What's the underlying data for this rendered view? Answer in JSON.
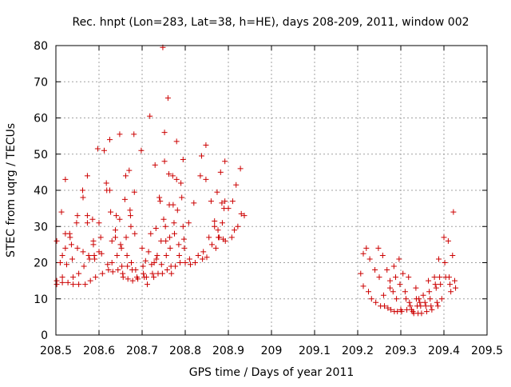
{
  "chart_data": {
    "type": "scatter",
    "title": "Rec. hnpt (Lon=283, Lat=38, h=HE), days 208-209, 2011, window 002",
    "xlabel": "GPS time / Days of year 2011",
    "ylabel": "STEC from uqrg / TECUs",
    "xlim": [
      208.5,
      209.5
    ],
    "ylim": [
      0,
      80
    ],
    "xticks": [
      "208.5",
      "208.6",
      "208.7",
      "208.8",
      "208.9",
      "209",
      "209.1",
      "209.2",
      "209.3",
      "209.4",
      "209.5"
    ],
    "yticks": [
      "0",
      "10",
      "20",
      "30",
      "40",
      "50",
      "60",
      "70",
      "80"
    ],
    "grid": true,
    "marker": "+",
    "marker_color": "#cc0000",
    "series": [
      {
        "points": [
          [
            208.502,
            26
          ],
          [
            208.502,
            15
          ],
          [
            208.502,
            14
          ],
          [
            208.51,
            20
          ],
          [
            208.513,
            34
          ],
          [
            208.515,
            22
          ],
          [
            208.515,
            16
          ],
          [
            208.515,
            14.5
          ],
          [
            208.522,
            43
          ],
          [
            208.522,
            28
          ],
          [
            208.522,
            24
          ],
          [
            208.525,
            19.5
          ],
          [
            208.528,
            14.5
          ],
          [
            208.532,
            28
          ],
          [
            208.533,
            27
          ],
          [
            208.536,
            25
          ],
          [
            208.538,
            21
          ],
          [
            208.54,
            16
          ],
          [
            208.54,
            14
          ],
          [
            208.548,
            31
          ],
          [
            208.55,
            33
          ],
          [
            208.55,
            24
          ],
          [
            208.553,
            17
          ],
          [
            208.553,
            14
          ],
          [
            208.562,
            40
          ],
          [
            208.563,
            38
          ],
          [
            208.563,
            23
          ],
          [
            208.565,
            19
          ],
          [
            208.568,
            14
          ],
          [
            208.573,
            44
          ],
          [
            208.573,
            33
          ],
          [
            208.573,
            31
          ],
          [
            208.576,
            22
          ],
          [
            208.578,
            21
          ],
          [
            208.58,
            15
          ],
          [
            208.585,
            32
          ],
          [
            208.587,
            26
          ],
          [
            208.587,
            25
          ],
          [
            208.589,
            22
          ],
          [
            208.59,
            21
          ],
          [
            208.592,
            16
          ],
          [
            208.597,
            51.5
          ],
          [
            208.6,
            31
          ],
          [
            208.6,
            23
          ],
          [
            208.604,
            27
          ],
          [
            208.606,
            22.5
          ],
          [
            208.608,
            17
          ],
          [
            208.612,
            51
          ],
          [
            208.617,
            42
          ],
          [
            208.618,
            40
          ],
          [
            208.62,
            19.5
          ],
          [
            208.622,
            18
          ],
          [
            208.625,
            54
          ],
          [
            208.625,
            40
          ],
          [
            208.627,
            34
          ],
          [
            208.63,
            26
          ],
          [
            208.63,
            20
          ],
          [
            208.632,
            17.5
          ],
          [
            208.638,
            29
          ],
          [
            208.638,
            27
          ],
          [
            208.64,
            33
          ],
          [
            208.642,
            22
          ],
          [
            208.644,
            18
          ],
          [
            208.648,
            55.5
          ],
          [
            208.648,
            32
          ],
          [
            208.65,
            25
          ],
          [
            208.652,
            24
          ],
          [
            208.653,
            19
          ],
          [
            208.655,
            17
          ],
          [
            208.656,
            16
          ],
          [
            208.66,
            37.5
          ],
          [
            208.662,
            44
          ],
          [
            208.663,
            27
          ],
          [
            208.665,
            22
          ],
          [
            208.666,
            19
          ],
          [
            208.667,
            15.5
          ],
          [
            208.67,
            45.5
          ],
          [
            208.672,
            34.5
          ],
          [
            208.673,
            33
          ],
          [
            208.674,
            30
          ],
          [
            208.675,
            20
          ],
          [
            208.677,
            18
          ],
          [
            208.678,
            15
          ],
          [
            208.681,
            55.5
          ],
          [
            208.682,
            39.5
          ],
          [
            208.683,
            28
          ],
          [
            208.685,
            18
          ],
          [
            208.688,
            16
          ],
          [
            208.69,
            15.5
          ],
          [
            208.698,
            51
          ],
          [
            208.7,
            24
          ],
          [
            208.702,
            19
          ],
          [
            208.703,
            17
          ],
          [
            208.705,
            16
          ],
          [
            208.708,
            20.5
          ],
          [
            208.71,
            16
          ],
          [
            208.712,
            14
          ],
          [
            208.715,
            23
          ],
          [
            208.718,
            60.5
          ],
          [
            208.72,
            28
          ],
          [
            208.722,
            19.5
          ],
          [
            208.724,
            17
          ],
          [
            208.727,
            16
          ],
          [
            208.728,
            20
          ],
          [
            208.73,
            47
          ],
          [
            208.732,
            29.5
          ],
          [
            208.733,
            21
          ],
          [
            208.735,
            22
          ],
          [
            208.737,
            17
          ],
          [
            208.74,
            38
          ],
          [
            208.742,
            37
          ],
          [
            208.744,
            26
          ],
          [
            208.745,
            19.5
          ],
          [
            208.747,
            17
          ],
          [
            208.748,
            79.5
          ],
          [
            208.75,
            32
          ],
          [
            208.752,
            56
          ],
          [
            208.752,
            48
          ],
          [
            208.754,
            30
          ],
          [
            208.755,
            26
          ],
          [
            208.756,
            22
          ],
          [
            208.758,
            18
          ],
          [
            208.76,
            65.5
          ],
          [
            208.762,
            44.5
          ],
          [
            208.763,
            36
          ],
          [
            208.764,
            27
          ],
          [
            208.765,
            24
          ],
          [
            208.767,
            19
          ],
          [
            208.768,
            17
          ],
          [
            208.771,
            44
          ],
          [
            208.772,
            36
          ],
          [
            208.774,
            31
          ],
          [
            208.775,
            28
          ],
          [
            208.777,
            19
          ],
          [
            208.78,
            53.5
          ],
          [
            208.78,
            43
          ],
          [
            208.782,
            34.5
          ],
          [
            208.785,
            25
          ],
          [
            208.786,
            22
          ],
          [
            208.788,
            20
          ],
          [
            208.79,
            42
          ],
          [
            208.792,
            38
          ],
          [
            208.795,
            48.5
          ],
          [
            208.795,
            30
          ],
          [
            208.797,
            26.5
          ],
          [
            208.798,
            24
          ],
          [
            208.8,
            20
          ],
          [
            208.808,
            31
          ],
          [
            208.81,
            21
          ],
          [
            208.812,
            19.5
          ],
          [
            208.82,
            36.5
          ],
          [
            208.823,
            20
          ],
          [
            208.83,
            22
          ],
          [
            208.835,
            44
          ],
          [
            208.838,
            49.5
          ],
          [
            208.84,
            21
          ],
          [
            208.842,
            23
          ],
          [
            208.848,
            52.5
          ],
          [
            208.848,
            43
          ],
          [
            208.85,
            21.5
          ],
          [
            208.855,
            27
          ],
          [
            208.86,
            37
          ],
          [
            208.862,
            25
          ],
          [
            208.868,
            31.5
          ],
          [
            208.868,
            30
          ],
          [
            208.871,
            24
          ],
          [
            208.874,
            39.5
          ],
          [
            208.876,
            29
          ],
          [
            208.877,
            27
          ],
          [
            208.879,
            27
          ],
          [
            208.882,
            45
          ],
          [
            208.885,
            36.5
          ],
          [
            208.886,
            31
          ],
          [
            208.888,
            26.5
          ],
          [
            208.89,
            35
          ],
          [
            208.892,
            48
          ],
          [
            208.892,
            37
          ],
          [
            208.893,
            26
          ],
          [
            208.9,
            35
          ],
          [
            208.908,
            27
          ],
          [
            208.91,
            37
          ],
          [
            208.914,
            29
          ],
          [
            208.918,
            41.5
          ],
          [
            208.922,
            30
          ],
          [
            208.928,
            46
          ],
          [
            208.93,
            33.5
          ],
          [
            208.937,
            33
          ]
        ]
      },
      {
        "points": [
          [
            209.207,
            17
          ],
          [
            209.213,
            22.5
          ],
          [
            209.213,
            13.5
          ],
          [
            209.22,
            24
          ],
          [
            209.225,
            12
          ],
          [
            209.228,
            21
          ],
          [
            209.232,
            10
          ],
          [
            209.24,
            18
          ],
          [
            209.242,
            9
          ],
          [
            209.248,
            24
          ],
          [
            209.25,
            16
          ],
          [
            209.253,
            8
          ],
          [
            209.258,
            22
          ],
          [
            209.26,
            11
          ],
          [
            209.262,
            8
          ],
          [
            209.268,
            18
          ],
          [
            209.27,
            7.5
          ],
          [
            209.275,
            15
          ],
          [
            209.275,
            13
          ],
          [
            209.277,
            7
          ],
          [
            209.282,
            12
          ],
          [
            209.284,
            19
          ],
          [
            209.285,
            6.5
          ],
          [
            209.288,
            16
          ],
          [
            209.29,
            10
          ],
          [
            209.292,
            6.5
          ],
          [
            209.296,
            21
          ],
          [
            209.298,
            14
          ],
          [
            209.3,
            7
          ],
          [
            209.302,
            6.5
          ],
          [
            209.305,
            17
          ],
          [
            209.31,
            12
          ],
          [
            209.312,
            10
          ],
          [
            209.314,
            7
          ],
          [
            209.318,
            16
          ],
          [
            209.32,
            9
          ],
          [
            209.322,
            8
          ],
          [
            209.325,
            7
          ],
          [
            209.328,
            6.5
          ],
          [
            209.33,
            6
          ],
          [
            209.335,
            13
          ],
          [
            209.336,
            10
          ],
          [
            209.338,
            8
          ],
          [
            209.34,
            6
          ],
          [
            209.342,
            10
          ],
          [
            209.344,
            9
          ],
          [
            209.346,
            8
          ],
          [
            209.348,
            6
          ],
          [
            209.352,
            11
          ],
          [
            209.356,
            9
          ],
          [
            209.358,
            8
          ],
          [
            209.36,
            6.5
          ],
          [
            209.364,
            15
          ],
          [
            209.366,
            12
          ],
          [
            209.368,
            10
          ],
          [
            209.37,
            8
          ],
          [
            209.372,
            7
          ],
          [
            209.378,
            16
          ],
          [
            209.38,
            14
          ],
          [
            209.382,
            13
          ],
          [
            209.384,
            9
          ],
          [
            209.386,
            8
          ],
          [
            209.388,
            21
          ],
          [
            209.39,
            16
          ],
          [
            209.392,
            14
          ],
          [
            209.395,
            10
          ],
          [
            209.4,
            27
          ],
          [
            209.402,
            20
          ],
          [
            209.404,
            16
          ],
          [
            209.41,
            26
          ],
          [
            209.412,
            16
          ],
          [
            209.414,
            14
          ],
          [
            209.416,
            12
          ],
          [
            209.42,
            22
          ],
          [
            209.422,
            34
          ],
          [
            209.425,
            15
          ],
          [
            209.427,
            13
          ]
        ]
      }
    ]
  }
}
